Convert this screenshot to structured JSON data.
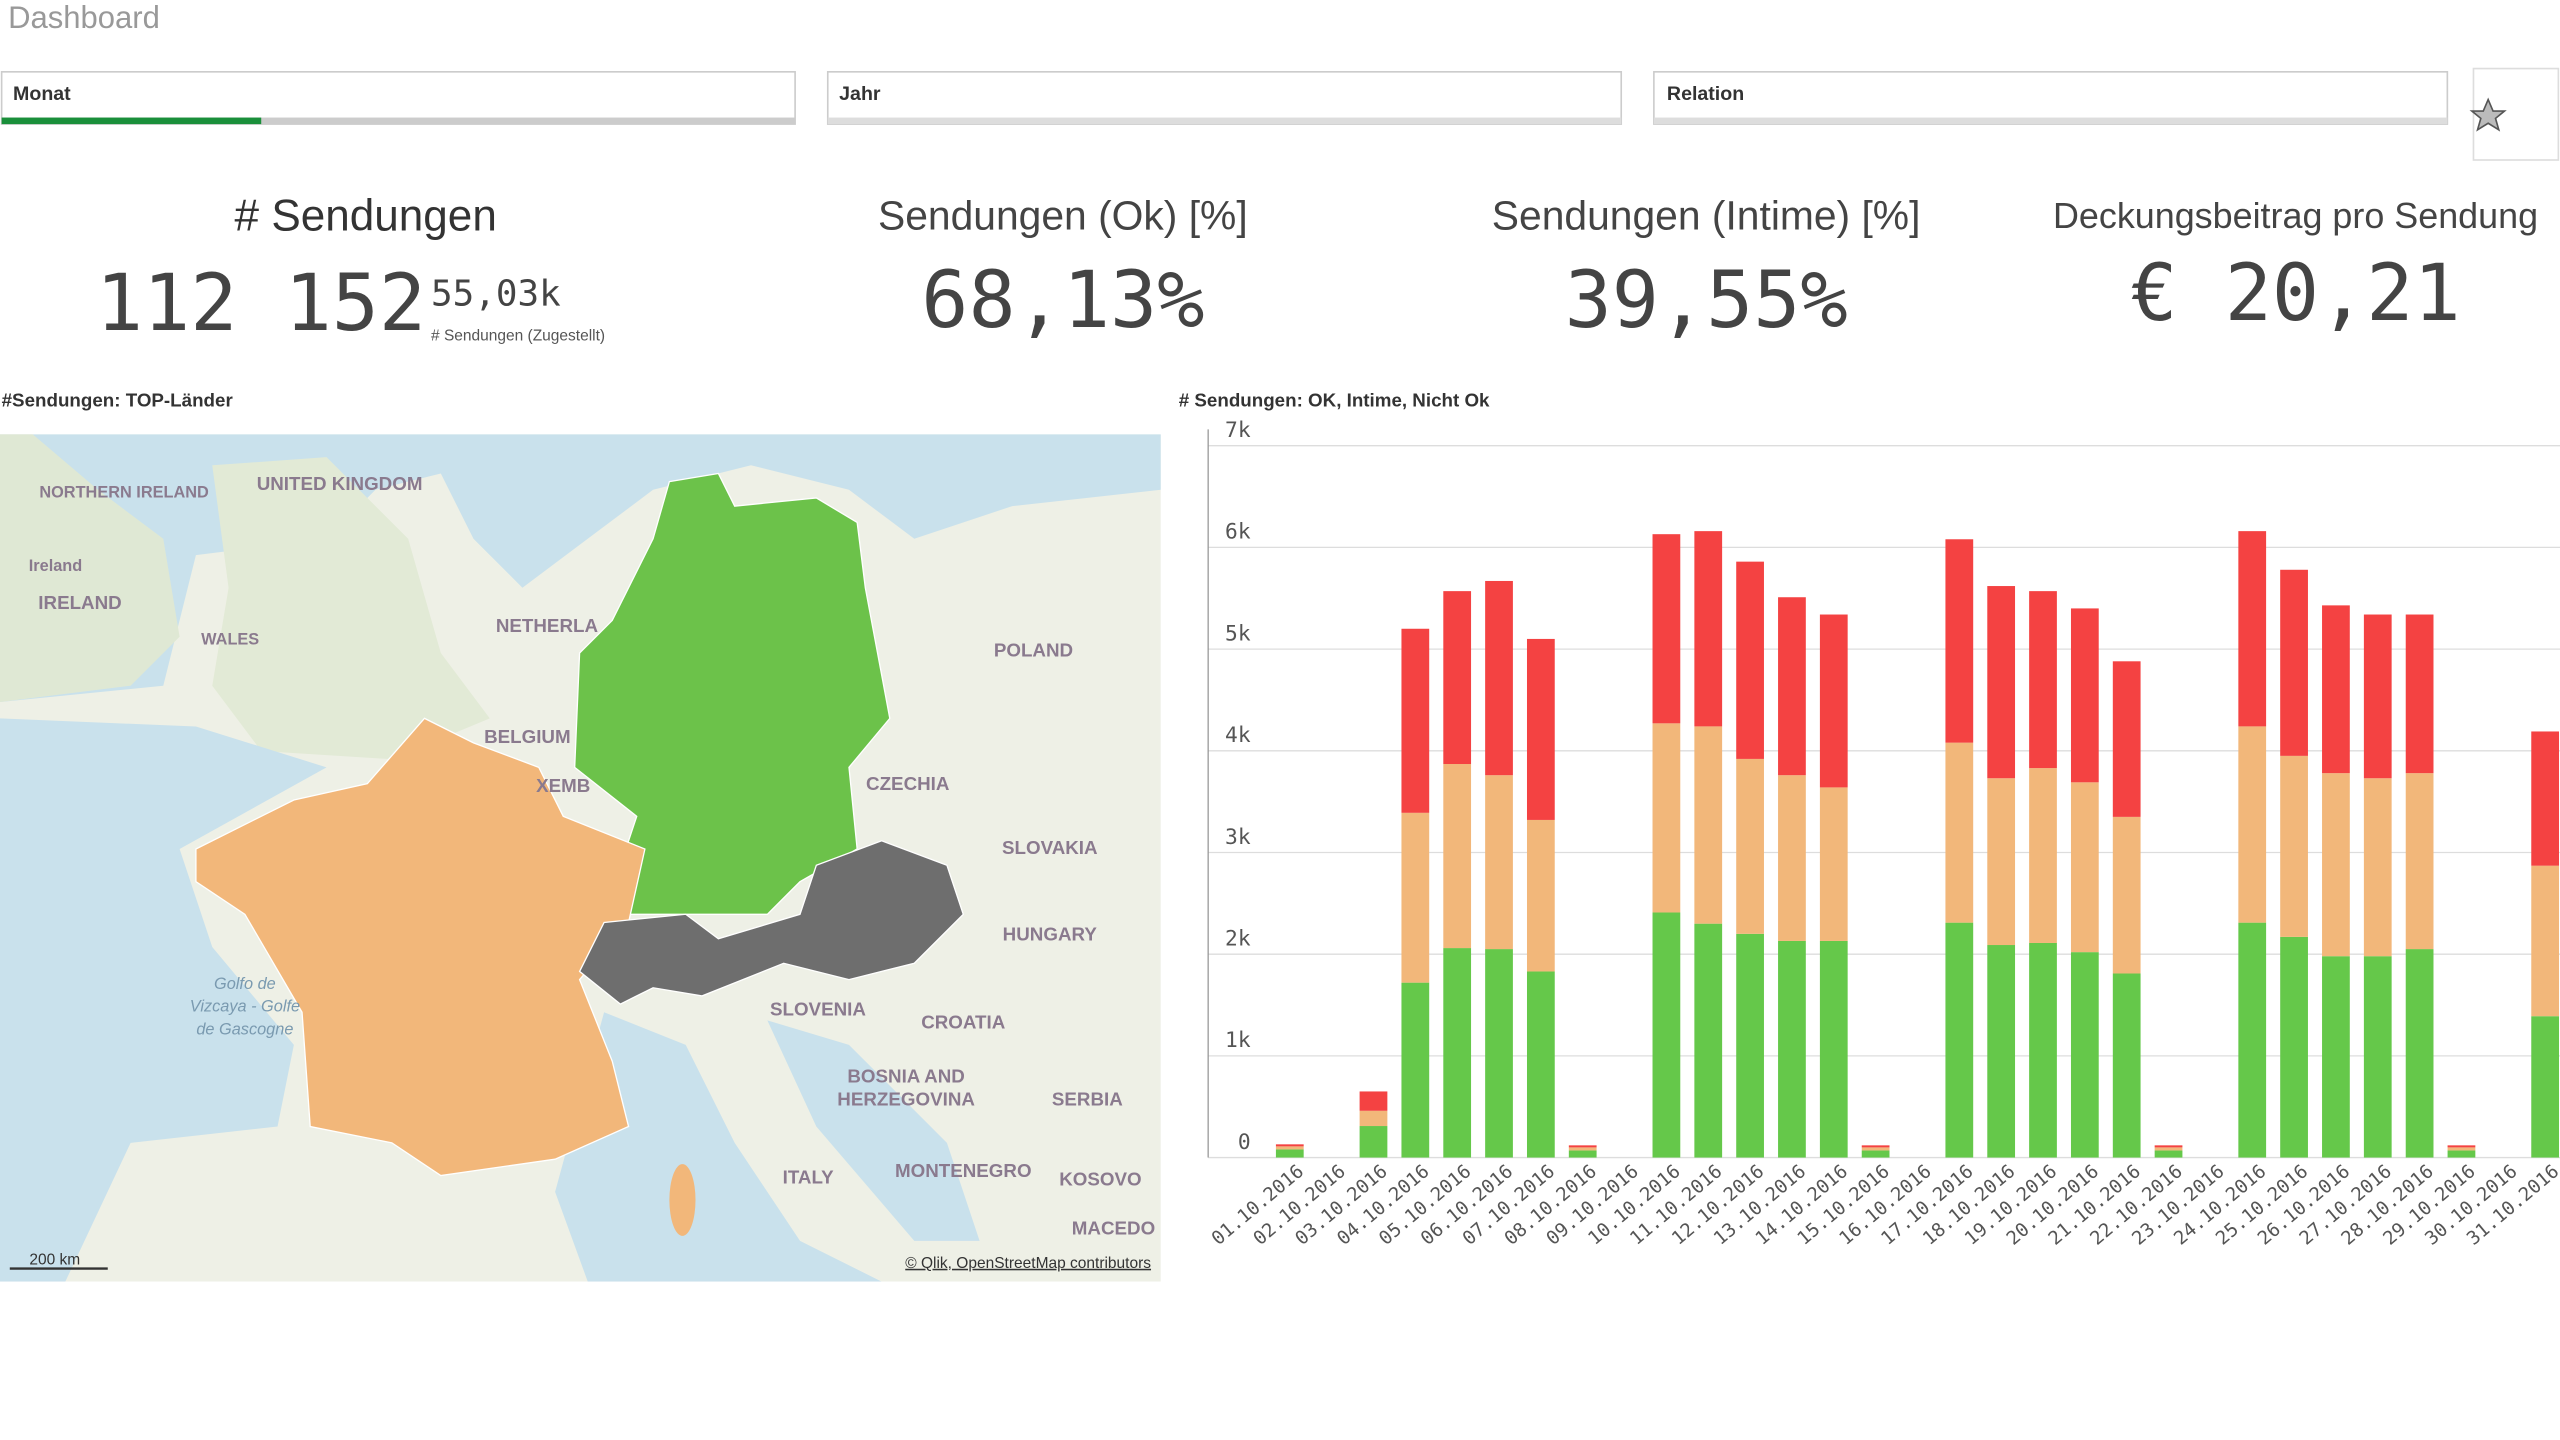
{
  "header": {
    "title": "Dashboard"
  },
  "filters": [
    "Monat",
    "Jahr",
    "Relation"
  ],
  "kpis": [
    {
      "title": "# Sendungen",
      "value": "112 152",
      "secondary": "55,03k",
      "secondary_label": "# Sendungen (Zugestellt)"
    },
    {
      "title": "Sendungen (Ok) [%]",
      "value": "68,13%"
    },
    {
      "title": "Sendungen (Intime) [%]",
      "value": "39,55%"
    },
    {
      "title": "Deckungsbeitrag pro Sendung",
      "value": "€ 20,21"
    }
  ],
  "map": {
    "title": "#Sendungen: TOP-Länder",
    "labels": [
      "NORTHERN IRELAND",
      "UNITED KINGDOM",
      "Ireland",
      "IRELAND",
      "WALES",
      "NETHERLA",
      "POLAND",
      "BELGIUM",
      "XEMB",
      "CZECHIA",
      "SLOVAKIA",
      "HUNGARY",
      "Golfo de",
      "Vizcaya - Golfe",
      "de Gascogne",
      "SLOVENIA",
      "CROATIA",
      "BOSNIA AND",
      "HERZEGOVINA",
      "SERBIA",
      "ITALY",
      "MONTENEGRO",
      "KOSOVO",
      "MACEDO"
    ],
    "scale": "200 km",
    "attribution": "© Qlik, OpenStreetMap contributors"
  },
  "chart_data": {
    "type": "bar",
    "stacked": true,
    "title": "# Sendungen: OK, Intime, Nicht Ok",
    "categories": [
      "01.10.2016",
      "02.10.2016",
      "03.10.2016",
      "04.10.2016",
      "05.10.2016",
      "06.10.2016",
      "07.10.2016",
      "08.10.2016",
      "09.10.2016",
      "10.10.2016",
      "11.10.2016",
      "12.10.2016",
      "13.10.2016",
      "14.10.2016",
      "15.10.2016",
      "16.10.2016",
      "17.10.2016",
      "18.10.2016",
      "19.10.2016",
      "20.10.2016",
      "21.10.2016",
      "22.10.2016",
      "23.10.2016",
      "24.10.2016",
      "25.10.2016",
      "26.10.2016",
      "27.10.2016",
      "28.10.2016",
      "29.10.2016",
      "30.10.2016",
      "31.10.2016"
    ],
    "series": [
      {
        "color": "#65c84a",
        "values": [
          80,
          0,
          310,
          1720,
          2060,
          2050,
          1830,
          70,
          0,
          2410,
          2300,
          2200,
          2130,
          2130,
          70,
          0,
          2310,
          2090,
          2110,
          2020,
          1810,
          70,
          0,
          2310,
          2170,
          1980,
          1980,
          2050,
          70,
          0,
          1390
        ]
      },
      {
        "color": "#f2b77a",
        "values": [
          30,
          0,
          150,
          1670,
          1810,
          1710,
          1490,
          30,
          0,
          1860,
          1940,
          1720,
          1630,
          1510,
          30,
          0,
          1770,
          1640,
          1720,
          1670,
          1540,
          30,
          0,
          1930,
          1780,
          1800,
          1750,
          1730,
          30,
          0,
          1480
        ]
      },
      {
        "color": "#f44242",
        "values": [
          20,
          0,
          190,
          1810,
          1700,
          1910,
          1780,
          20,
          0,
          1860,
          1920,
          1940,
          1750,
          1700,
          20,
          0,
          2000,
          1890,
          1740,
          1710,
          1530,
          20,
          0,
          1920,
          1830,
          1650,
          1610,
          1560,
          20,
          0,
          1320
        ]
      }
    ],
    "ylim": [
      0,
      7000
    ],
    "yticks": [
      0,
      {
        "value": 1000,
        "label": "1k"
      },
      {
        "value": 2000,
        "label": "2k"
      },
      {
        "value": 3000,
        "label": "3k"
      },
      {
        "value": 4000,
        "label": "4k"
      },
      {
        "value": 5000,
        "label": "5k"
      },
      {
        "value": 6000,
        "label": "6k"
      },
      {
        "value": 7000,
        "label": "7k"
      }
    ],
    "grid": true
  }
}
